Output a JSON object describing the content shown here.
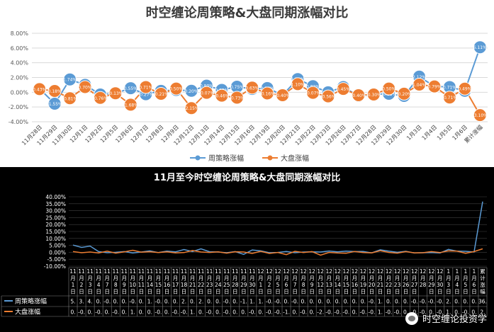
{
  "chart_data": [
    {
      "type": "line",
      "title": "时空缠论周策略&大盘同期涨幅对比",
      "ylim": [
        -4,
        8
      ],
      "yticks": [
        "8.00%",
        "6.00%",
        "4.00%",
        "2.00%",
        "0.00%",
        "-2.00%",
        "-4.00%"
      ],
      "grid": true,
      "legend_position": "bottom",
      "categories": [
        "11月28日",
        "11月29日",
        "11月30日",
        "12月1日",
        "12月2日",
        "12月5日",
        "12月6日",
        "12月7日",
        "12月8日",
        "12月9日",
        "12月12日",
        "12月13日",
        "12月14日",
        "12月15日",
        "12月16日",
        "12月19日",
        "12月20日",
        "12月21日",
        "12月22日",
        "12月23日",
        "12月26日",
        "12月27日",
        "12月28日",
        "12月29日",
        "12月30日",
        "1月3日",
        "1月4日",
        "1月5日",
        "1月6日",
        "累计涨幅"
      ],
      "series": [
        {
          "name": "周策略涨幅",
          "color": "#5b9bd5",
          "values": [
            0.49,
            -1.55,
            1.74,
            1.0,
            -0.3,
            -0.14,
            0.55,
            -0.27,
            0.19,
            0.31,
            0.2,
            0.9,
            0.32,
            0.75,
            0.45,
            0.57,
            -0.39,
            1.79,
            0.82,
            0.0,
            0.7,
            -0.5,
            -0.3,
            -0.21,
            -0.5,
            2.12,
            0.8,
            0.71,
            0.2,
            6.11
          ],
          "labels": [
            "0.49%",
            "-1.55%",
            "1.74%",
            "1.00%",
            "-0.30%",
            "-0.14%",
            "0.55%",
            "-0.27%",
            "0.19%",
            "0.31%",
            "0.20%",
            "0.90%",
            "0.32%",
            "0.75%",
            "0.45%",
            "0.57%",
            "-0.39%",
            "1.79%",
            "0.82%",
            "0.00%",
            "0.70%",
            "-0.50%",
            "-0.30%",
            "-0.21%",
            "-0.50%",
            "2.12%",
            "0.80%",
            "0.71%",
            "0.20%",
            "6.11%"
          ]
        },
        {
          "name": "大盘涨幅",
          "color": "#ed7d31",
          "values": [
            0.43,
            0.18,
            -0.81,
            0.7,
            -0.76,
            -0.13,
            -1.68,
            0.71,
            -0.21,
            0.5,
            -2.15,
            -0.07,
            -0.46,
            -0.73,
            0.63,
            -0.16,
            -0.4,
            1.1,
            -0.07,
            -0.56,
            0.45,
            -0.4,
            -0.3,
            0.5,
            -0.2,
            1.04,
            0.79,
            -0.71,
            0.49,
            -3.1
          ],
          "labels": [
            "0.43%",
            "0.18%",
            "-0.81%",
            "0.70%",
            "-0.76%",
            "-0.13%",
            "-1.68%",
            "0.71%",
            "-0.21%",
            "0.50%",
            "-2.15%",
            "-0.07%",
            "-0.46%",
            "-0.73%",
            "0.63%",
            "-0.16%",
            "-0.40%",
            "1.10%",
            "-0.07%",
            "-0.56%",
            "0.45%",
            "-0.40%",
            "-0.30%",
            "0.50%",
            "-0.20%",
            "1.04%",
            "0.79%",
            "-0.71%",
            "0.49%",
            "-3.10%"
          ]
        }
      ]
    },
    {
      "type": "line",
      "title": "11月至今时空缠论周策略&大盘同期涨幅对比",
      "ylim": [
        -10,
        40
      ],
      "yticks": [
        "40.00%",
        "35.00%",
        "30.00%",
        "25.00%",
        "20.00%",
        "15.00%",
        "10.00%",
        "5.00%",
        "0.00%",
        "-5.00%",
        "-10.00%"
      ],
      "grid": true,
      "categories": [
        "11月1日",
        "11月2日",
        "11月3日",
        "11月4日",
        "11月7日",
        "11月8日",
        "11月9日",
        "11月10日",
        "11月11日",
        "11月14日",
        "11月15日",
        "11月16日",
        "11月17日",
        "11月18日",
        "11月21日",
        "11月22日",
        "11月23日",
        "11月24日",
        "11月25日",
        "11月28日",
        "11月29日",
        "11月30日",
        "12月1日",
        "12月2日",
        "12月5日",
        "12月6日",
        "12月7日",
        "12月8日",
        "12月9日",
        "12月12日",
        "12月13日",
        "12月14日",
        "12月15日",
        "12月16日",
        "12月19日",
        "12月20日",
        "12月21日",
        "12月22日",
        "12月23日",
        "12月26日",
        "12月27日",
        "12月28",
        "12月29日",
        "12月30日",
        "1月3日",
        "1月4日",
        "1月5日",
        "1月6日",
        "累计涨幅"
      ],
      "category_labels": [
        [
          "11",
          "月",
          "1",
          "日"
        ],
        [
          "11",
          "月",
          "2",
          "日"
        ],
        [
          "11",
          "月",
          "3",
          "日"
        ],
        [
          "11",
          "月",
          "4",
          "日"
        ],
        [
          "11",
          "月",
          "7",
          "日"
        ],
        [
          "11",
          "月",
          "8",
          "日"
        ],
        [
          "11",
          "月",
          "9",
          "日"
        ],
        [
          "11",
          "月",
          "10",
          "日"
        ],
        [
          "11",
          "月",
          "11",
          "日"
        ],
        [
          "11",
          "月",
          "14",
          "日"
        ],
        [
          "11",
          "月",
          "15",
          "日"
        ],
        [
          "11",
          "月",
          "16",
          "日"
        ],
        [
          "11",
          "月",
          "17",
          "日"
        ],
        [
          "11",
          "月",
          "18",
          "日"
        ],
        [
          "11",
          "月",
          "21",
          "日"
        ],
        [
          "11",
          "月",
          "22",
          "日"
        ],
        [
          "11",
          "月",
          "23",
          "日"
        ],
        [
          "11",
          "月",
          "24",
          "日"
        ],
        [
          "11",
          "月",
          "25",
          "日"
        ],
        [
          "11",
          "月",
          "28",
          "日"
        ],
        [
          "11",
          "月",
          "29",
          "日"
        ],
        [
          "11",
          "月",
          "30",
          "日"
        ],
        [
          "12",
          "月",
          "1",
          "日"
        ],
        [
          "12",
          "月",
          "2",
          "日"
        ],
        [
          "12",
          "月",
          "5",
          "日"
        ],
        [
          "12",
          "月",
          "6",
          "日"
        ],
        [
          "12",
          "月",
          "7",
          "日"
        ],
        [
          "12",
          "月",
          "8",
          "日"
        ],
        [
          "12",
          "月",
          "9",
          "日"
        ],
        [
          "12",
          "月",
          "12",
          "日"
        ],
        [
          "12",
          "月",
          "13",
          "日"
        ],
        [
          "12",
          "月",
          "14",
          "日"
        ],
        [
          "12",
          "月",
          "15",
          "日"
        ],
        [
          "12",
          "月",
          "16",
          "日"
        ],
        [
          "12",
          "月",
          "19",
          "日"
        ],
        [
          "12",
          "月",
          "20",
          "日"
        ],
        [
          "12",
          "月",
          "21",
          "日"
        ],
        [
          "12",
          "月",
          "22",
          "日"
        ],
        [
          "12",
          "月",
          "23",
          "日"
        ],
        [
          "12",
          "月",
          "26",
          "日"
        ],
        [
          "12",
          "月",
          "27",
          "日"
        ],
        [
          "12",
          "月",
          "28"
        ],
        [
          "12",
          "月",
          "29",
          "日"
        ],
        [
          "12",
          "月",
          "30",
          "日"
        ],
        [
          "1",
          "月",
          "3",
          "日"
        ],
        [
          "1",
          "月",
          "4",
          "日"
        ],
        [
          "1",
          "月",
          "5",
          "日"
        ],
        [
          "1",
          "月",
          "6",
          "日"
        ],
        [
          "累",
          "计",
          "涨",
          "幅"
        ]
      ],
      "series": [
        {
          "name": "周策略涨幅",
          "color": "#5b9bd5",
          "values": [
            5.2,
            3.5,
            4.5,
            0.5,
            -0.3,
            0.0,
            0.5,
            -0.5,
            0.2,
            1.0,
            -0.2,
            0.8,
            0.3,
            2.0,
            0.5,
            2.5,
            0.4,
            0.2,
            -0.3,
            0.5,
            -1.5,
            1.7,
            1.0,
            -0.3,
            -0.1,
            0.6,
            -0.3,
            0.2,
            0.3,
            0.2,
            0.9,
            0.3,
            0.8,
            0.5,
            0.6,
            -0.4,
            1.8,
            0.8,
            0.0,
            0.7,
            -0.5,
            -0.3,
            -0.2,
            -0.5,
            2.1,
            0.8,
            0.7,
            0.2,
            36.6
          ],
          "row_text": [
            "5.",
            "3.",
            "4.",
            "0.",
            "-0.",
            "0.",
            "0.",
            "-0.",
            "0.",
            "1.",
            "-0.",
            "0.",
            "0.",
            "2.",
            "0.",
            "2.",
            "0.",
            "0.",
            "-0.",
            "0.",
            "-1.",
            "1.",
            "1.",
            "-0.",
            "-0.",
            "0.",
            "-0.",
            "0.",
            "0.",
            "0.",
            "0.",
            "0.",
            "0.",
            "0.",
            "0.",
            "-0.",
            "1.",
            "0.",
            "0.",
            "0.",
            "-0.",
            "-0.",
            "-0.",
            "-0.",
            "2.",
            "0.",
            "0.",
            "0.",
            "36."
          ]
        },
        {
          "name": "大盘涨幅",
          "color": "#ed7d31",
          "values": [
            0.5,
            -0.3,
            0.2,
            -0.5,
            0.8,
            -0.6,
            0.3,
            1.5,
            0.1,
            0.4,
            -0.2,
            0.3,
            -0.4,
            -0.2,
            1.3,
            0.2,
            -0.1,
            0.3,
            -0.6,
            0.4,
            0.2,
            -0.8,
            0.7,
            -0.8,
            -0.1,
            -1.7,
            0.7,
            -0.2,
            0.5,
            -2.1,
            -0.1,
            -0.5,
            -0.7,
            0.6,
            -0.2,
            -0.4,
            1.1,
            -0.1,
            -0.6,
            0.5,
            -0.4,
            -0.3,
            0.5,
            -0.2,
            1.0,
            0.8,
            -0.7,
            0.5,
            2.5
          ],
          "row_text": [
            "0.",
            "-0.",
            "0.",
            "-0.",
            "0.",
            "-0.",
            "0.",
            "1.",
            "0.",
            "0.",
            "-0.",
            "0.",
            "-0.",
            "-0.",
            "1.",
            "0.",
            "-0.",
            "0.",
            "-0.",
            "0.",
            "0.",
            "-0.",
            "0.",
            "-0.",
            "-0.",
            "-1.",
            "0.",
            "-0.",
            "0.",
            "-2.",
            "-0.",
            "-0.",
            "-0.",
            "0.",
            "-0.",
            "-0.",
            "1.",
            "-0.",
            "-0.",
            "0.",
            "-0.",
            "-0.",
            "0.",
            "-0.",
            "1.",
            "0.",
            "-0.",
            "0.",
            "2."
          ]
        }
      ]
    }
  ],
  "watermark": {
    "text": "时空缠论投资学",
    "icon": "wechat-icon"
  }
}
